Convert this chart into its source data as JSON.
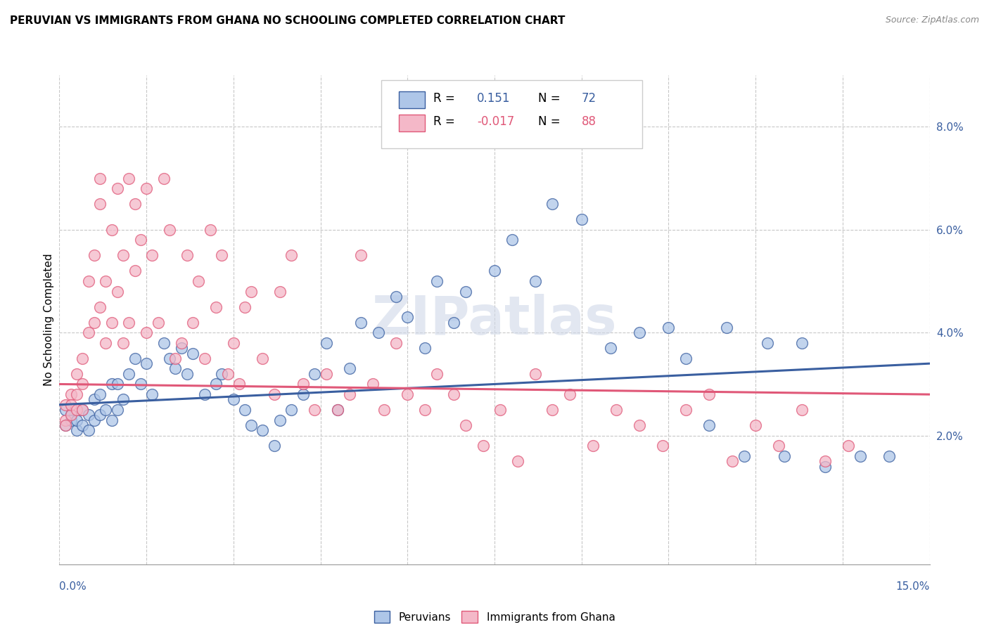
{
  "title": "PERUVIAN VS IMMIGRANTS FROM GHANA NO SCHOOLING COMPLETED CORRELATION CHART",
  "source": "Source: ZipAtlas.com",
  "ylabel": "No Schooling Completed",
  "yticks": [
    "2.0%",
    "4.0%",
    "6.0%",
    "8.0%"
  ],
  "ytick_vals": [
    0.02,
    0.04,
    0.06,
    0.08
  ],
  "xlim": [
    0.0,
    0.15
  ],
  "ylim": [
    -0.005,
    0.09
  ],
  "legend_line1": "R =   0.151   N = 72",
  "legend_line2": "R = -0.017   N = 88",
  "blue_color": "#aec6e8",
  "pink_color": "#f4b8c8",
  "trend_blue": "#3a5fa0",
  "trend_pink": "#e05878",
  "watermark": "ZIPatlas",
  "blue_trend_start": 0.026,
  "blue_trend_end": 0.034,
  "pink_trend_start": 0.03,
  "pink_trend_end": 0.028,
  "blue_points_x": [
    0.001,
    0.001,
    0.002,
    0.002,
    0.003,
    0.003,
    0.004,
    0.004,
    0.005,
    0.005,
    0.006,
    0.006,
    0.007,
    0.007,
    0.008,
    0.009,
    0.009,
    0.01,
    0.01,
    0.011,
    0.012,
    0.013,
    0.014,
    0.015,
    0.016,
    0.018,
    0.019,
    0.02,
    0.021,
    0.022,
    0.023,
    0.025,
    0.027,
    0.028,
    0.03,
    0.032,
    0.033,
    0.035,
    0.037,
    0.038,
    0.04,
    0.042,
    0.044,
    0.046,
    0.048,
    0.05,
    0.052,
    0.055,
    0.058,
    0.06,
    0.063,
    0.065,
    0.068,
    0.07,
    0.075,
    0.078,
    0.082,
    0.085,
    0.09,
    0.095,
    0.1,
    0.105,
    0.108,
    0.112,
    0.115,
    0.118,
    0.122,
    0.125,
    0.128,
    0.132,
    0.138,
    0.143
  ],
  "blue_points_y": [
    0.025,
    0.022,
    0.024,
    0.023,
    0.021,
    0.023,
    0.022,
    0.025,
    0.021,
    0.024,
    0.023,
    0.027,
    0.024,
    0.028,
    0.025,
    0.023,
    0.03,
    0.025,
    0.03,
    0.027,
    0.032,
    0.035,
    0.03,
    0.034,
    0.028,
    0.038,
    0.035,
    0.033,
    0.037,
    0.032,
    0.036,
    0.028,
    0.03,
    0.032,
    0.027,
    0.025,
    0.022,
    0.021,
    0.018,
    0.023,
    0.025,
    0.028,
    0.032,
    0.038,
    0.025,
    0.033,
    0.042,
    0.04,
    0.047,
    0.043,
    0.037,
    0.05,
    0.042,
    0.048,
    0.052,
    0.058,
    0.05,
    0.065,
    0.062,
    0.037,
    0.04,
    0.041,
    0.035,
    0.022,
    0.041,
    0.016,
    0.038,
    0.016,
    0.038,
    0.014,
    0.016,
    0.016
  ],
  "pink_points_x": [
    0.001,
    0.001,
    0.001,
    0.002,
    0.002,
    0.002,
    0.003,
    0.003,
    0.003,
    0.004,
    0.004,
    0.004,
    0.005,
    0.005,
    0.006,
    0.006,
    0.007,
    0.007,
    0.007,
    0.008,
    0.008,
    0.009,
    0.009,
    0.01,
    0.01,
    0.011,
    0.011,
    0.012,
    0.012,
    0.013,
    0.013,
    0.014,
    0.015,
    0.015,
    0.016,
    0.017,
    0.018,
    0.019,
    0.02,
    0.021,
    0.022,
    0.023,
    0.024,
    0.025,
    0.026,
    0.027,
    0.028,
    0.029,
    0.03,
    0.031,
    0.032,
    0.033,
    0.035,
    0.037,
    0.038,
    0.04,
    0.042,
    0.044,
    0.046,
    0.048,
    0.05,
    0.052,
    0.054,
    0.056,
    0.058,
    0.06,
    0.063,
    0.065,
    0.068,
    0.07,
    0.073,
    0.076,
    0.079,
    0.082,
    0.085,
    0.088,
    0.092,
    0.096,
    0.1,
    0.104,
    0.108,
    0.112,
    0.116,
    0.12,
    0.124,
    0.128,
    0.132,
    0.136
  ],
  "pink_points_y": [
    0.023,
    0.026,
    0.022,
    0.028,
    0.024,
    0.026,
    0.025,
    0.032,
    0.028,
    0.025,
    0.03,
    0.035,
    0.04,
    0.05,
    0.042,
    0.055,
    0.045,
    0.065,
    0.07,
    0.038,
    0.05,
    0.042,
    0.06,
    0.048,
    0.068,
    0.038,
    0.055,
    0.07,
    0.042,
    0.052,
    0.065,
    0.058,
    0.04,
    0.068,
    0.055,
    0.042,
    0.07,
    0.06,
    0.035,
    0.038,
    0.055,
    0.042,
    0.05,
    0.035,
    0.06,
    0.045,
    0.055,
    0.032,
    0.038,
    0.03,
    0.045,
    0.048,
    0.035,
    0.028,
    0.048,
    0.055,
    0.03,
    0.025,
    0.032,
    0.025,
    0.028,
    0.055,
    0.03,
    0.025,
    0.038,
    0.028,
    0.025,
    0.032,
    0.028,
    0.022,
    0.018,
    0.025,
    0.015,
    0.032,
    0.025,
    0.028,
    0.018,
    0.025,
    0.022,
    0.018,
    0.025,
    0.028,
    0.015,
    0.022,
    0.018,
    0.025,
    0.015,
    0.018
  ]
}
